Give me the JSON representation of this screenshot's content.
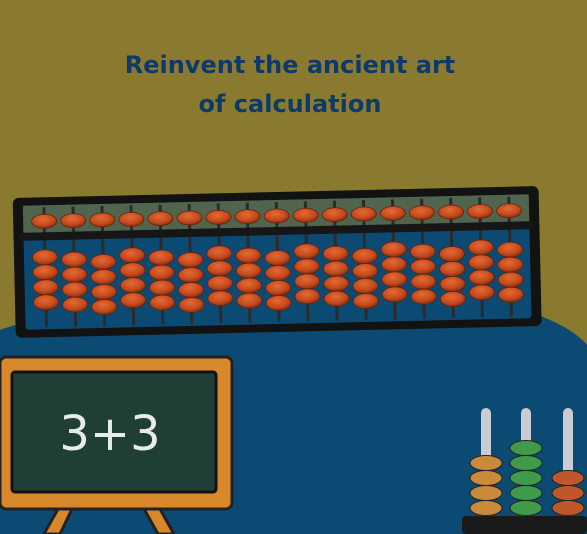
{
  "headline": {
    "line1": "Reinvent the ancient art",
    "line2": "of calculation"
  },
  "chalkboard": {
    "expression": "3+3"
  },
  "abacus": {
    "rods": 17,
    "upper_beads_per_rod": 1,
    "lower_beads_per_rod": 4
  },
  "mini_abacus": {
    "rods": [
      {
        "beads": 4,
        "color": "#c98a3a"
      },
      {
        "beads": 5,
        "color": "#3f9a4a"
      },
      {
        "beads": 3,
        "color": "#c0572a"
      }
    ]
  },
  "colors": {
    "background_top": "#8a7a2f",
    "background_bottom": "#0b4a73",
    "headline": "#0d3a6b",
    "bead": "#c64a1e",
    "frame": "#121212",
    "chalkboard_frame": "#d8882a",
    "chalkboard_face": "#1f3f36",
    "chalk": "#e7ece8"
  }
}
